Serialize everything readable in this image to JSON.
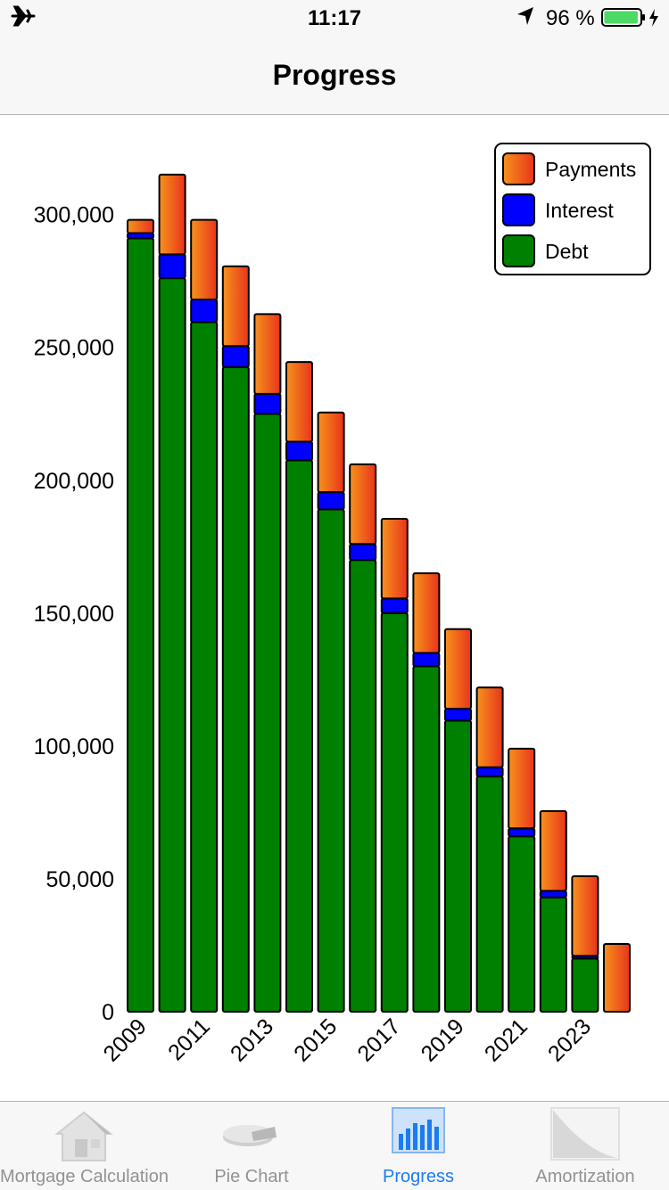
{
  "status_bar": {
    "time": "11:17",
    "battery_text": "96 %",
    "battery_level": 0.96,
    "icons": [
      "airplane-icon",
      "location-arrow-icon",
      "battery-icon",
      "charging-bolt-icon"
    ]
  },
  "nav": {
    "title": "Progress"
  },
  "chart_data": {
    "type": "bar",
    "stacked": true,
    "x": [
      2009,
      2010,
      2011,
      2012,
      2013,
      2014,
      2015,
      2016,
      2017,
      2018,
      2019,
      2020,
      2021,
      2022,
      2023,
      2024
    ],
    "x_tick_labels": [
      "2009",
      "2011",
      "2013",
      "2015",
      "2017",
      "2019",
      "2021",
      "2023"
    ],
    "ylim": [
      0,
      320000
    ],
    "y_ticks": [
      0,
      50000,
      100000,
      150000,
      200000,
      250000,
      300000
    ],
    "y_tick_labels": [
      "0",
      "50,000",
      "100,000",
      "150,000",
      "200,000",
      "250,000",
      "300,000"
    ],
    "series": [
      {
        "name": "Debt",
        "color": "#008000",
        "values": [
          291000,
          276000,
          259500,
          242500,
          225000,
          207500,
          189000,
          170000,
          150000,
          130000,
          109500,
          88500,
          66000,
          43000,
          20000,
          0
        ]
      },
      {
        "name": "Interest",
        "color": "#0000ff",
        "values": [
          2000,
          9000,
          8500,
          8000,
          7500,
          7000,
          6500,
          6000,
          5500,
          5000,
          4500,
          3500,
          3000,
          2500,
          1000,
          0
        ]
      },
      {
        "name": "Payments",
        "color": "#f07a10",
        "values": [
          5000,
          30000,
          30000,
          30000,
          30000,
          30000,
          30000,
          30000,
          30000,
          30000,
          30000,
          30000,
          30000,
          30000,
          30000,
          25500
        ]
      }
    ],
    "legend": {
      "position": "top-right",
      "entries": [
        {
          "label": "Payments",
          "color": "#f07a10"
        },
        {
          "label": "Interest",
          "color": "#0000ff"
        },
        {
          "label": "Debt",
          "color": "#008000"
        }
      ]
    },
    "grid": false
  },
  "tab_bar": {
    "tabs": [
      {
        "label": "Mortgage Calculation",
        "icon": "house-icon",
        "active": false
      },
      {
        "label": "Pie Chart",
        "icon": "pie-chart-icon",
        "active": false
      },
      {
        "label": "Progress",
        "icon": "bar-chart-icon",
        "active": true
      },
      {
        "label": "Amortization",
        "icon": "amortization-icon",
        "active": false
      }
    ]
  }
}
